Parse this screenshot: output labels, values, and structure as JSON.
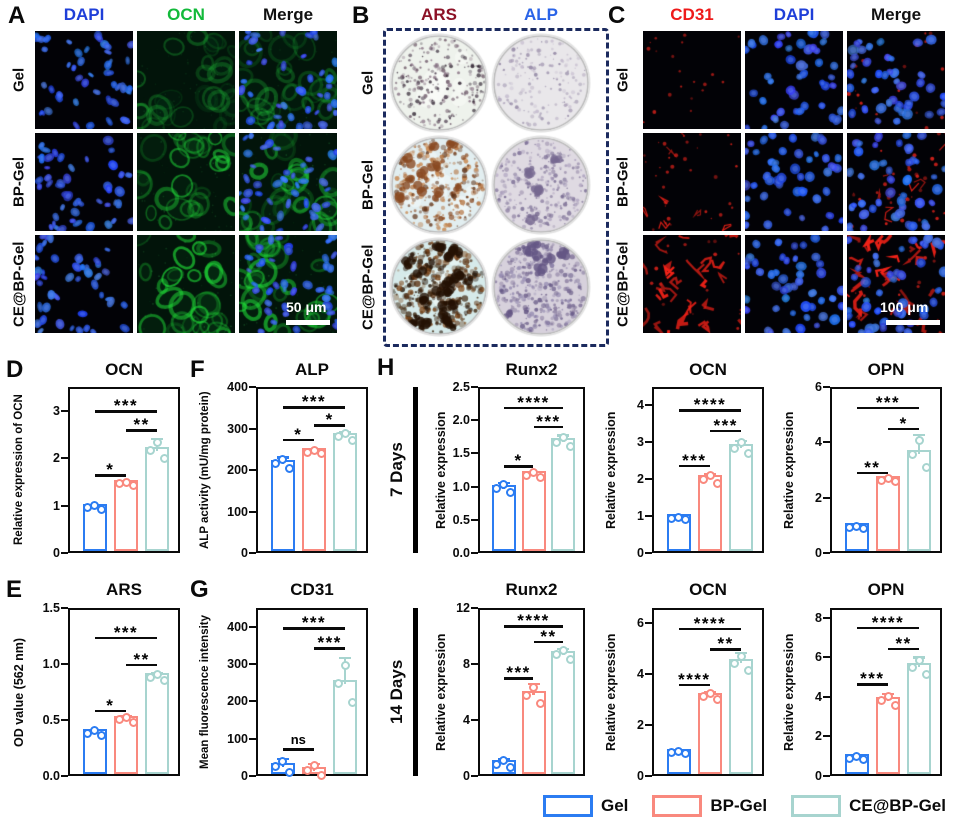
{
  "figure": {
    "kind": "paper-figure",
    "caption_letters": [
      "A",
      "B",
      "C",
      "D",
      "E",
      "F",
      "G",
      "H"
    ]
  },
  "groups": [
    "Gel",
    "BP-Gel",
    "CE@BP-Gel"
  ],
  "group_colors": [
    "#2b7cf2",
    "#f9897e",
    "#a7d4cf"
  ],
  "panelA": {
    "label": "A",
    "columns": [
      {
        "label": "DAPI",
        "color": "#1f3fd8"
      },
      {
        "label": "OCN",
        "color": "#12b93a"
      },
      {
        "label": "Merge",
        "color": "#111111"
      }
    ],
    "rows": [
      "Gel",
      "BP-Gel",
      "CE@BP-Gel"
    ],
    "scale_bar": "50 μm"
  },
  "panelB": {
    "label": "B",
    "columns": [
      {
        "label": "ARS",
        "color": "#8c1126"
      },
      {
        "label": "ALP",
        "color": "#2a64e8"
      }
    ],
    "rows": [
      "Gel",
      "BP-Gel",
      "CE@BP-Gel"
    ]
  },
  "panelC": {
    "label": "C",
    "columns": [
      {
        "label": "CD31",
        "color": "#ee1a1a"
      },
      {
        "label": "DAPI",
        "color": "#1f3fd8"
      },
      {
        "label": "Merge",
        "color": "#111111"
      }
    ],
    "rows": [
      "Gel",
      "BP-Gel",
      "CE@BP-Gel"
    ],
    "scale_bar": "100 μm"
  },
  "panelH": {
    "label": "H",
    "row_groups": [
      "7 Days",
      "14 Days"
    ]
  },
  "legend": {
    "items": [
      {
        "label": "Gel",
        "color": "#2b7cf2"
      },
      {
        "label": "BP-Gel",
        "color": "#f9897e"
      },
      {
        "label": "CE@BP-Gel",
        "color": "#a7d4cf"
      }
    ]
  },
  "chart_data": [
    {
      "panel": "D",
      "type": "bar",
      "title": "OCN",
      "ylabel": "Relative expression of OCN",
      "categories": [
        "Gel",
        "BP-Gel",
        "CE@BP-Gel"
      ],
      "values": [
        1.0,
        1.5,
        2.2
      ],
      "errors": [
        0.05,
        0.05,
        0.25
      ],
      "ylim": [
        0,
        3.5
      ],
      "yticks": [
        "0",
        "1",
        "2",
        "3"
      ],
      "significance": [
        {
          "i": 0,
          "j": 1,
          "label": "*",
          "y": 1.7
        },
        {
          "i": 1,
          "j": 2,
          "label": "**",
          "y": 2.65
        },
        {
          "i": 0,
          "j": 2,
          "label": "***",
          "y": 3.05
        }
      ]
    },
    {
      "panel": "F",
      "type": "bar",
      "title": "ALP",
      "ylabel": "ALP activity (mU/mg protein)",
      "categories": [
        "Gel",
        "BP-Gel",
        "CE@BP-Gel"
      ],
      "values": [
        220,
        248,
        285
      ],
      "errors": [
        15,
        6,
        12
      ],
      "ylim": [
        0,
        400
      ],
      "yticks": [
        "0",
        "100",
        "200",
        "300",
        "400"
      ],
      "significance": [
        {
          "i": 0,
          "j": 1,
          "label": "*",
          "y": 280
        },
        {
          "i": 1,
          "j": 2,
          "label": "*",
          "y": 315
        },
        {
          "i": 0,
          "j": 2,
          "label": "***",
          "y": 358
        }
      ]
    },
    {
      "panel": "H",
      "type": "bar",
      "title": "Runx2",
      "ylabel": "Relative expression",
      "time_group": "7 Days",
      "categories": [
        "Gel",
        "BP-Gel",
        "CE@BP-Gel"
      ],
      "values": [
        1.0,
        1.2,
        1.7
      ],
      "errors": [
        0.09,
        0.05,
        0.1
      ],
      "ylim": [
        0,
        2.5
      ],
      "yticks": [
        "0.0",
        "0.5",
        "1.0",
        "1.5",
        "2.0",
        "2.5"
      ],
      "significance": [
        {
          "i": 0,
          "j": 1,
          "label": "*",
          "y": 1.35
        },
        {
          "i": 1,
          "j": 2,
          "label": "***",
          "y": 1.95
        },
        {
          "i": 0,
          "j": 2,
          "label": "****",
          "y": 2.23
        }
      ]
    },
    {
      "panel": "H",
      "type": "bar",
      "title": "OCN",
      "ylabel": "Relative expression",
      "time_group": "7 Days",
      "categories": [
        "Gel",
        "BP-Gel",
        "CE@BP-Gel"
      ],
      "values": [
        1.0,
        2.05,
        2.9
      ],
      "errors": [
        0.04,
        0.15,
        0.2
      ],
      "ylim": [
        0,
        4.5
      ],
      "yticks": [
        "0",
        "1",
        "2",
        "3",
        "4"
      ],
      "significance": [
        {
          "i": 0,
          "j": 1,
          "label": "***",
          "y": 2.45
        },
        {
          "i": 1,
          "j": 2,
          "label": "***",
          "y": 3.4
        },
        {
          "i": 0,
          "j": 2,
          "label": "****",
          "y": 3.95
        }
      ]
    },
    {
      "panel": "H",
      "type": "bar",
      "title": "OPN",
      "ylabel": "Relative expression",
      "time_group": "7 Days",
      "categories": [
        "Gel",
        "BP-Gel",
        "CE@BP-Gel"
      ],
      "values": [
        1.0,
        2.7,
        3.65
      ],
      "errors": [
        0.06,
        0.07,
        0.7
      ],
      "ylim": [
        0,
        6
      ],
      "yticks": [
        "0",
        "2",
        "4",
        "6"
      ],
      "significance": [
        {
          "i": 0,
          "j": 1,
          "label": "**",
          "y": 3.0
        },
        {
          "i": 1,
          "j": 2,
          "label": "*",
          "y": 4.6
        },
        {
          "i": 0,
          "j": 2,
          "label": "***",
          "y": 5.35
        }
      ]
    },
    {
      "panel": "E",
      "type": "bar",
      "title": "ARS",
      "ylabel": "OD value (562 nm)",
      "categories": [
        "Gel",
        "BP-Gel",
        "CE@BP-Gel"
      ],
      "values": [
        0.4,
        0.52,
        0.9
      ],
      "errors": [
        0.03,
        0.03,
        0.04
      ],
      "ylim": [
        0,
        1.5
      ],
      "yticks": [
        "0.0",
        "0.5",
        "1.0",
        "1.5"
      ],
      "significance": [
        {
          "i": 0,
          "j": 1,
          "label": "*",
          "y": 0.61
        },
        {
          "i": 1,
          "j": 2,
          "label": "**",
          "y": 1.02
        },
        {
          "i": 0,
          "j": 2,
          "label": "***",
          "y": 1.26
        }
      ]
    },
    {
      "panel": "G",
      "type": "bar",
      "title": "CD31",
      "ylabel": "Mean fluorescence intensity",
      "categories": [
        "Gel",
        "BP-Gel",
        "CE@BP-Gel"
      ],
      "values": [
        30,
        20,
        252
      ],
      "errors": [
        22,
        18,
        70
      ],
      "ylim": [
        0,
        450
      ],
      "yticks": [
        "0",
        "100",
        "200",
        "300",
        "400"
      ],
      "significance": [
        {
          "i": 0,
          "j": 1,
          "label": "ns",
          "y": 80
        },
        {
          "i": 1,
          "j": 2,
          "label": "***",
          "y": 350
        },
        {
          "i": 0,
          "j": 2,
          "label": "***",
          "y": 404
        }
      ]
    },
    {
      "panel": "H",
      "type": "bar",
      "title": "Runx2",
      "ylabel": "Relative expression",
      "time_group": "14 Days",
      "categories": [
        "Gel",
        "BP-Gel",
        "CE@BP-Gel"
      ],
      "values": [
        1.0,
        5.9,
        8.8
      ],
      "errors": [
        0.35,
        0.8,
        0.45
      ],
      "ylim": [
        0,
        12
      ],
      "yticks": [
        "0",
        "4",
        "8",
        "12"
      ],
      "significance": [
        {
          "i": 0,
          "j": 1,
          "label": "***",
          "y": 7.2
        },
        {
          "i": 1,
          "j": 2,
          "label": "**",
          "y": 9.8
        },
        {
          "i": 0,
          "j": 2,
          "label": "****",
          "y": 10.9
        }
      ]
    },
    {
      "panel": "H",
      "type": "bar",
      "title": "OCN",
      "ylabel": "Relative expression",
      "time_group": "14 Days",
      "categories": [
        "Gel",
        "BP-Gel",
        "CE@BP-Gel"
      ],
      "values": [
        1.0,
        3.2,
        4.5
      ],
      "errors": [
        0.07,
        0.18,
        0.4
      ],
      "ylim": [
        0,
        6.6
      ],
      "yticks": [
        "0",
        "2",
        "4",
        "6"
      ],
      "significance": [
        {
          "i": 0,
          "j": 1,
          "label": "****",
          "y": 3.7
        },
        {
          "i": 1,
          "j": 2,
          "label": "**",
          "y": 5.1
        },
        {
          "i": 0,
          "j": 2,
          "label": "****",
          "y": 5.9
        }
      ]
    },
    {
      "panel": "H",
      "type": "bar",
      "title": "OPN",
      "ylabel": "Relative expression",
      "time_group": "14 Days",
      "categories": [
        "Gel",
        "BP-Gel",
        "CE@BP-Gel"
      ],
      "values": [
        1.0,
        3.9,
        5.6
      ],
      "errors": [
        0.1,
        0.35,
        0.5
      ],
      "ylim": [
        0,
        8.5
      ],
      "yticks": [
        "0",
        "2",
        "4",
        "6",
        "8"
      ],
      "significance": [
        {
          "i": 0,
          "j": 1,
          "label": "***",
          "y": 4.8
        },
        {
          "i": 1,
          "j": 2,
          "label": "**",
          "y": 6.6
        },
        {
          "i": 0,
          "j": 2,
          "label": "****",
          "y": 7.65
        }
      ]
    }
  ]
}
